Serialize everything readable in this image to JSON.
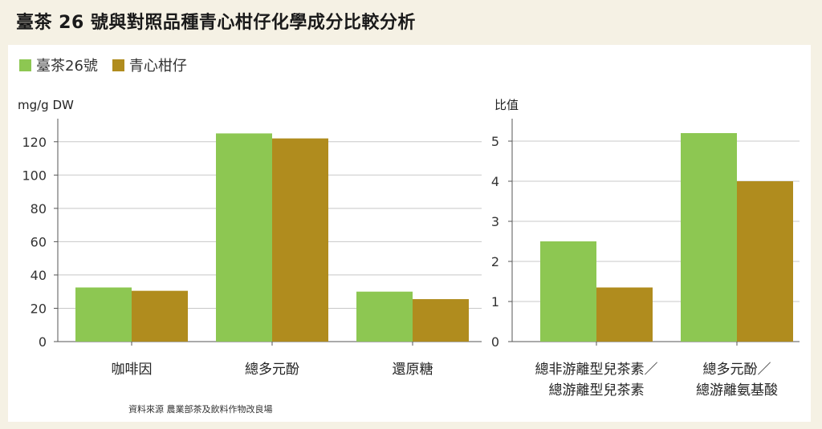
{
  "title": "臺茶 26 號與對照品種青心柑仔化學成分比較分析",
  "colors": {
    "taicha26": "#8dc752",
    "qingxin": "#b08c1e",
    "grid": "#c8c8c8",
    "axis": "#555555",
    "background": "#f5f1e4"
  },
  "legend": [
    {
      "label": "臺茶26號",
      "color": "#8dc752"
    },
    {
      "label": "青心柑仔",
      "color": "#b08c1e"
    }
  ],
  "source": "資料來源 農業部茶及飲料作物改良場",
  "chart_data": [
    {
      "type": "bar",
      "ylabel": "mg/g DW",
      "ylim": [
        0,
        130
      ],
      "yticks": [
        0,
        20,
        40,
        60,
        80,
        100,
        120
      ],
      "grid": true,
      "categories": [
        [
          "咖啡因"
        ],
        [
          "總多元酚"
        ],
        [
          "還原糖"
        ]
      ],
      "series": [
        {
          "name": "臺茶26號",
          "values": [
            32.5,
            125,
            30
          ]
        },
        {
          "name": "青心柑仔",
          "values": [
            30.5,
            122,
            25.5
          ]
        }
      ]
    },
    {
      "type": "bar",
      "ylabel": "比值",
      "ylim": [
        0,
        5.4
      ],
      "yticks": [
        0,
        1,
        2,
        3,
        4,
        5
      ],
      "grid": true,
      "categories": [
        [
          "總非游離型兒茶素／",
          "總游離型兒茶素"
        ],
        [
          "總多元酚／",
          "總游離氨基酸"
        ]
      ],
      "series": [
        {
          "name": "臺茶26號",
          "values": [
            2.5,
            5.2
          ]
        },
        {
          "name": "青心柑仔",
          "values": [
            1.35,
            4.0
          ]
        }
      ]
    }
  ]
}
